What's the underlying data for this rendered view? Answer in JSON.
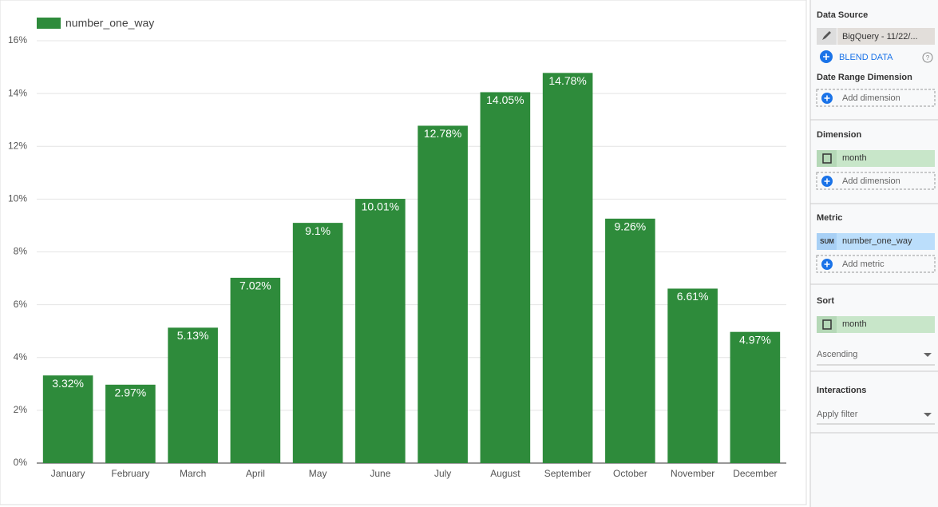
{
  "chart_data": {
    "type": "bar",
    "categories": [
      "January",
      "February",
      "March",
      "April",
      "May",
      "June",
      "July",
      "August",
      "September",
      "October",
      "November",
      "December"
    ],
    "series": [
      {
        "name": "number_one_way",
        "color": "#2e8b3b",
        "values": [
          3.32,
          2.97,
          5.13,
          7.02,
          9.1,
          10.01,
          12.78,
          14.05,
          14.78,
          9.26,
          6.61,
          4.97
        ],
        "value_labels": [
          "3.32%",
          "2.97%",
          "5.13%",
          "7.02%",
          "9.1%",
          "10.01%",
          "12.78%",
          "14.05%",
          "14.78%",
          "9.26%",
          "6.61%",
          "4.97%"
        ]
      }
    ],
    "ylim": [
      0,
      16
    ],
    "yticks": [
      {
        "value": 0,
        "label": "0%"
      },
      {
        "value": 2,
        "label": "2%"
      },
      {
        "value": 4,
        "label": "4%"
      },
      {
        "value": 6,
        "label": "6%"
      },
      {
        "value": 8,
        "label": "8%"
      },
      {
        "value": 10,
        "label": "10%"
      },
      {
        "value": 12,
        "label": "12%"
      },
      {
        "value": 14,
        "label": "14%"
      },
      {
        "value": 16,
        "label": "16%"
      }
    ],
    "grid": true,
    "legend": "top-left"
  },
  "panel": {
    "data_source": {
      "label": "Data Source",
      "source": "BigQuery - 11/22/...",
      "blend": "BLEND DATA"
    },
    "date_range": {
      "label": "Date Range Dimension",
      "add": "Add dimension"
    },
    "dimension": {
      "label": "Dimension",
      "field": "month",
      "add": "Add dimension"
    },
    "metric": {
      "label": "Metric",
      "aggregation": "SUM",
      "field": "number_one_way",
      "add": "Add metric"
    },
    "sort": {
      "label": "Sort",
      "field": "month",
      "order": "Ascending"
    },
    "interactions": {
      "label": "Interactions",
      "filter": "Apply filter"
    }
  }
}
